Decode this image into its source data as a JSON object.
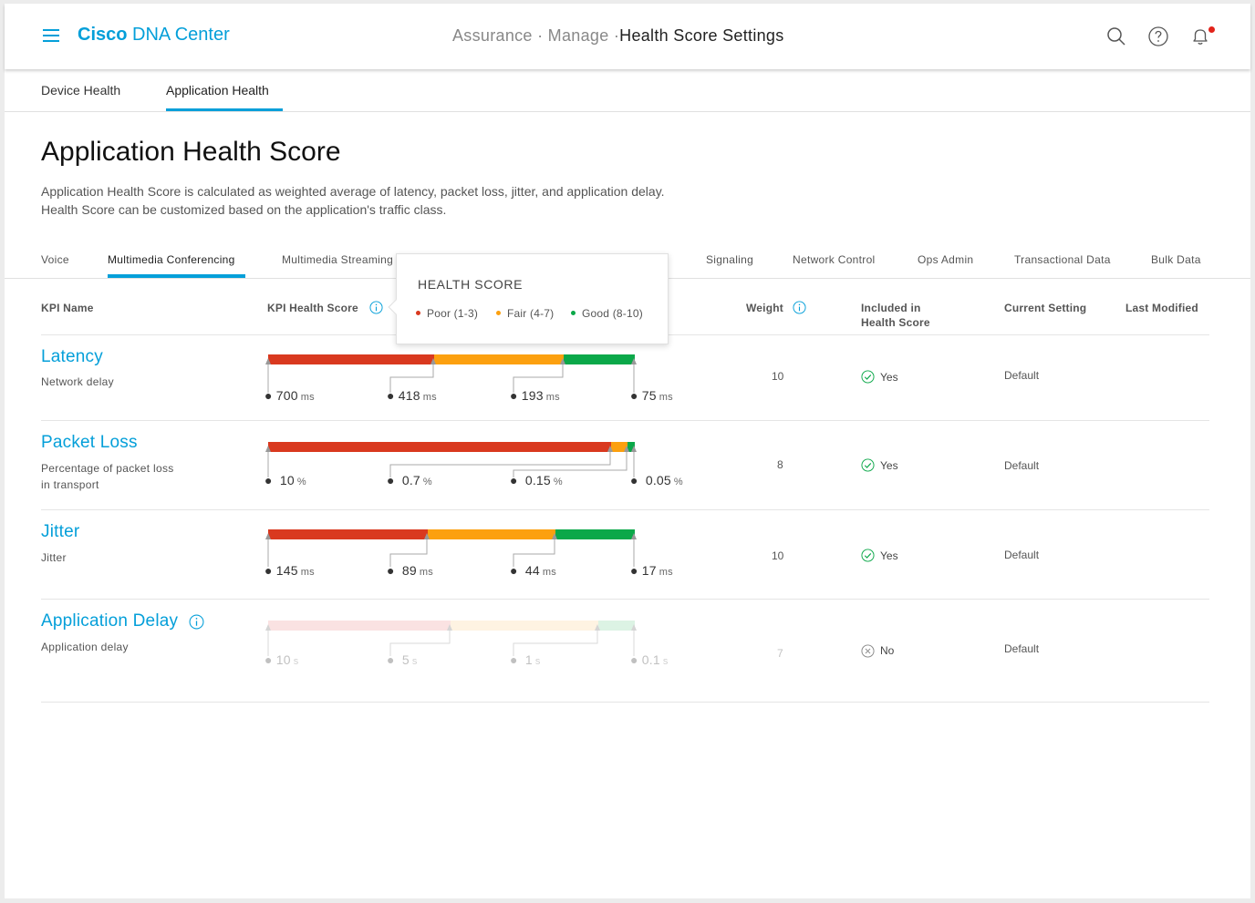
{
  "header": {
    "brand_bold": "Cisco",
    "brand_rest": " DNA Center",
    "crumbs": [
      "Assurance",
      "Manage",
      "Health Score Settings"
    ],
    "icons": [
      "search-icon",
      "help-icon",
      "bell-icon"
    ]
  },
  "main_tabs": [
    {
      "label": "Device Health",
      "active": false
    },
    {
      "label": "Application Health",
      "active": true
    }
  ],
  "page": {
    "title": "Application Health Score",
    "desc_line1": "Application Health Score is calculated as weighted average of latency, packet loss, jitter, and application delay.",
    "desc_line2": "Health Score can be customized based on the application's traffic class."
  },
  "traffic_tabs": [
    {
      "label": "Voice",
      "active": false
    },
    {
      "label": "Multimedia Conferencing",
      "active": true
    },
    {
      "label": "Multimedia Streaming",
      "active": false
    },
    {
      "label": "Signaling",
      "active": false
    },
    {
      "label": "Network Control",
      "active": false
    },
    {
      "label": "Ops Admin",
      "active": false
    },
    {
      "label": "Transactional Data",
      "active": false
    },
    {
      "label": "Bulk Data",
      "active": false
    }
  ],
  "columns": {
    "kpi_name": "KPI Name",
    "kpi_health": "KPI Health Score",
    "weight": "Weight",
    "included_l1": "Included in",
    "included_l2": "Health Score",
    "current_setting": "Current Setting",
    "last_modified": "Last Modified"
  },
  "popover": {
    "title": "HEALTH SCORE",
    "poor": "Poor (1-3)",
    "fair": "Fair (4-7)",
    "good": "Good (8-10)"
  },
  "colors": {
    "poor": "#d9391f",
    "fair": "#fca00f",
    "good": "#0ba849",
    "accent": "#049fd9"
  },
  "kpis": [
    {
      "name": "Latency",
      "sub1": "Network delay",
      "sub2": "",
      "thresholds": [
        {
          "v": "700",
          "u": "ms"
        },
        {
          "v": "418",
          "u": "ms"
        },
        {
          "v": "193",
          "u": "ms"
        },
        {
          "v": "75",
          "u": "ms"
        }
      ],
      "weight": "10",
      "included": "Yes",
      "setting": "Default"
    },
    {
      "name": "Packet Loss",
      "sub1": "Percentage of packet loss",
      "sub2": "in transport",
      "thresholds": [
        {
          "v": "10",
          "u": "%"
        },
        {
          "v": "0.7",
          "u": "%"
        },
        {
          "v": "0.15",
          "u": "%"
        },
        {
          "v": "0.05",
          "u": "%"
        }
      ],
      "weight": "8",
      "included": "Yes",
      "setting": "Default"
    },
    {
      "name": "Jitter",
      "sub1": "Jitter",
      "sub2": "",
      "thresholds": [
        {
          "v": "145",
          "u": "ms"
        },
        {
          "v": "89",
          "u": "ms"
        },
        {
          "v": "44",
          "u": "ms"
        },
        {
          "v": "17",
          "u": "ms"
        }
      ],
      "weight": "10",
      "included": "Yes",
      "setting": "Default"
    },
    {
      "name": "Application Delay",
      "sub1": "Application delay",
      "sub2": "",
      "thresholds": [
        {
          "v": "10",
          "u": "s"
        },
        {
          "v": "5",
          "u": "s"
        },
        {
          "v": "1",
          "u": "s"
        },
        {
          "v": "0.1",
          "u": "s"
        }
      ],
      "weight": "7",
      "included": "No",
      "setting": "Default"
    }
  ]
}
